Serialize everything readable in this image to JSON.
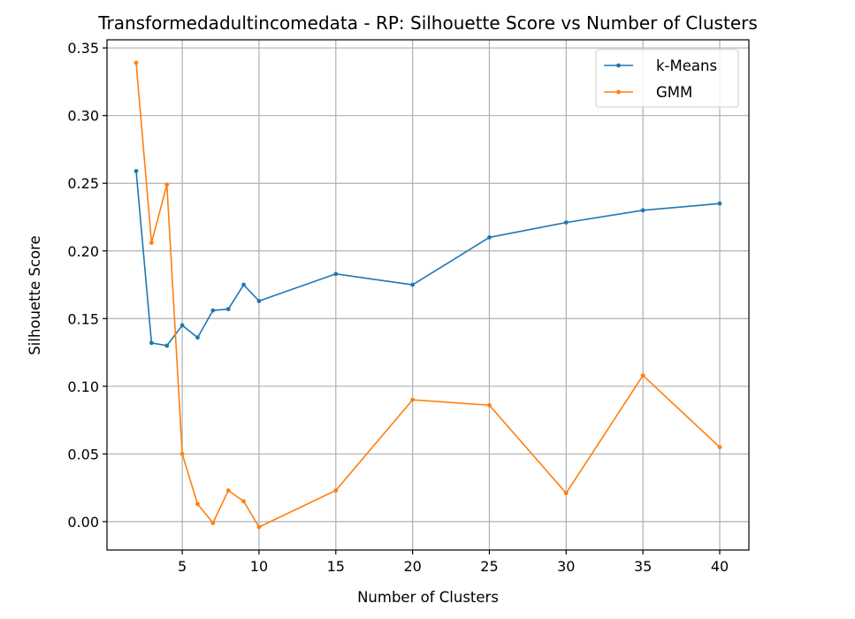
{
  "chart_data": {
    "type": "line",
    "title": "Transformedadultincomedata - RP: Silhouette Score vs Number of Clusters",
    "xlabel": "Number of Clusters",
    "ylabel": "Silhouette Score",
    "xlim": [
      0.1,
      41.9
    ],
    "ylim": [
      -0.021,
      0.356
    ],
    "xticks": [
      5,
      10,
      15,
      20,
      25,
      30,
      35,
      40
    ],
    "yticks": [
      0.0,
      0.05,
      0.1,
      0.15,
      0.2,
      0.25,
      0.3,
      0.35
    ],
    "ytick_labels": [
      "0.00",
      "0.05",
      "0.10",
      "0.15",
      "0.20",
      "0.25",
      "0.30",
      "0.35"
    ],
    "grid": true,
    "legend_position": "top-right",
    "x": [
      2,
      3,
      4,
      5,
      6,
      7,
      8,
      9,
      10,
      15,
      20,
      25,
      30,
      35,
      40
    ],
    "series": [
      {
        "name": "k-Means",
        "color": "#1f77b4",
        "values": [
          0.259,
          0.132,
          0.13,
          0.145,
          0.136,
          0.156,
          0.157,
          0.175,
          0.163,
          0.183,
          0.175,
          0.21,
          0.221,
          0.23,
          0.235
        ]
      },
      {
        "name": "GMM",
        "color": "#ff7f0e",
        "values": [
          0.339,
          0.206,
          0.249,
          0.05,
          0.013,
          -0.001,
          0.023,
          0.015,
          -0.004,
          0.023,
          0.09,
          0.086,
          0.021,
          0.108,
          0.055
        ]
      }
    ]
  }
}
